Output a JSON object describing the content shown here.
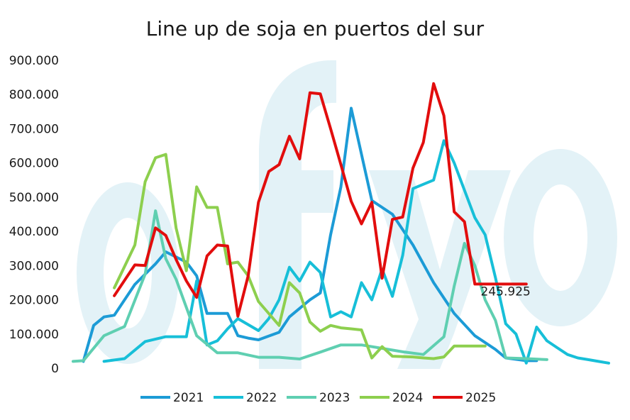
{
  "chart_data": {
    "type": "line",
    "title": "Line up de soja en puertos del sur",
    "xlabel": "",
    "ylabel": "",
    "ylim": [
      0,
      900000
    ],
    "yticks": [
      0,
      100000,
      200000,
      300000,
      400000,
      500000,
      600000,
      700000,
      800000,
      900000
    ],
    "ytick_labels": [
      "0",
      "100.000",
      "200.000",
      "300.000",
      "400.000",
      "500.000",
      "600.000",
      "700.000",
      "800.000",
      "900.000"
    ],
    "x_count": 53,
    "grid": false,
    "legend_position": "bottom",
    "end_label": {
      "series": "2025",
      "text": "245.925",
      "value": 245925
    },
    "series": [
      {
        "name": "2021",
        "color": "#1c9bd6",
        "x": [
          1,
          2,
          3,
          4,
          6,
          8,
          9,
          11,
          12,
          13,
          15,
          16,
          17,
          18,
          20,
          21,
          23,
          24,
          25,
          26,
          27,
          29,
          31,
          33,
          35,
          37,
          39,
          41,
          42,
          44,
          45
        ],
        "values": [
          20000,
          125000,
          150000,
          155000,
          245000,
          305000,
          340000,
          310000,
          270000,
          160000,
          160000,
          95000,
          88000,
          83000,
          105000,
          150000,
          200000,
          220000,
          390000,
          530000,
          760000,
          490000,
          450000,
          360000,
          250000,
          160000,
          95000,
          55000,
          30000,
          22000,
          22000
        ]
      },
      {
        "name": "2022",
        "color": "#17bfd8",
        "x": [
          3,
          5,
          7,
          9,
          11,
          12,
          13,
          14,
          15,
          16,
          18,
          19,
          20,
          21,
          22,
          23,
          24,
          25,
          26,
          27,
          28,
          29,
          30,
          31,
          32,
          33,
          35,
          36,
          37,
          38,
          39,
          40,
          41,
          42,
          43,
          44,
          45,
          46,
          47,
          48,
          49,
          50,
          51,
          52
        ],
        "values": [
          20000,
          28000,
          78000,
          92000,
          92000,
          255000,
          68000,
          80000,
          115000,
          145000,
          110000,
          145000,
          200000,
          295000,
          255000,
          310000,
          280000,
          150000,
          165000,
          150000,
          250000,
          200000,
          290000,
          210000,
          330000,
          525000,
          550000,
          665000,
          600000,
          520000,
          440000,
          390000,
          265000,
          130000,
          100000,
          15000,
          120000,
          80000,
          60000,
          40000,
          30000,
          25000,
          20000,
          15000
        ]
      },
      {
        "name": "2023",
        "color": "#5fcfb1",
        "x": [
          0,
          1,
          3,
          5,
          7,
          8,
          9,
          10,
          12,
          14,
          16,
          18,
          20,
          22,
          24,
          26,
          28,
          30,
          32,
          34,
          36,
          37,
          38,
          39,
          40,
          41,
          42,
          44,
          46
        ],
        "values": [
          20000,
          22000,
          95000,
          122000,
          275000,
          460000,
          320000,
          260000,
          95000,
          45000,
          45000,
          32000,
          32000,
          27000,
          47000,
          68000,
          68000,
          58000,
          48000,
          40000,
          92000,
          240000,
          365000,
          300000,
          200000,
          140000,
          30000,
          28000,
          25000
        ]
      },
      {
        "name": "2024",
        "color": "#8dcf4e",
        "x": [
          4,
          6,
          7,
          8,
          9,
          10,
          11,
          12,
          13,
          14,
          15,
          16,
          17,
          18,
          20,
          21,
          22,
          23,
          24,
          25,
          26,
          27,
          28,
          29,
          30,
          31,
          33,
          34,
          35,
          36,
          37,
          38,
          39,
          40
        ],
        "values": [
          235000,
          360000,
          545000,
          615000,
          625000,
          410000,
          285000,
          530000,
          470000,
          470000,
          305000,
          310000,
          270000,
          195000,
          125000,
          250000,
          220000,
          135000,
          108000,
          125000,
          118000,
          115000,
          112000,
          30000,
          63000,
          35000,
          33000,
          30000,
          28000,
          33000,
          65000,
          65000,
          65000,
          65000
        ]
      },
      {
        "name": "2025",
        "color": "#e20d0d",
        "x": [
          4,
          6,
          7,
          8,
          9,
          10,
          11,
          12,
          13,
          14,
          15,
          16,
          17,
          18,
          19,
          20,
          21,
          22,
          23,
          24,
          25,
          26,
          27,
          28,
          29,
          30,
          31,
          32,
          33,
          34,
          35,
          36,
          37,
          38,
          39,
          40,
          41,
          42,
          43,
          44
        ],
        "values": [
          212000,
          302000,
          300000,
          410000,
          388000,
          318000,
          255000,
          207000,
          328000,
          360000,
          357000,
          152000,
          270000,
          485000,
          575000,
          595000,
          678000,
          612000,
          805000,
          802000,
          700000,
          595000,
          488000,
          422000,
          485000,
          263000,
          435000,
          442000,
          585000,
          660000,
          832000,
          738000,
          457000,
          428000,
          245925,
          245925,
          245925,
          245925,
          245925,
          245925
        ]
      }
    ]
  }
}
